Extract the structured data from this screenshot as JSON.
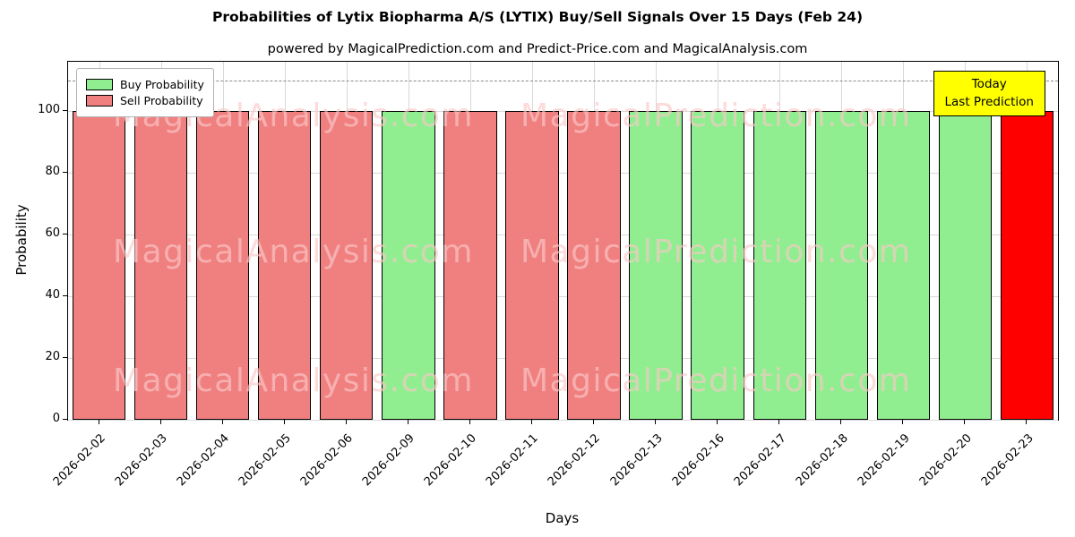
{
  "title": "Probabilities of Lytix Biopharma A/S (LYTIX) Buy/Sell Signals Over 15 Days (Feb 24)",
  "subtitle": "powered by MagicalPrediction.com and Predict-Price.com and MagicalAnalysis.com",
  "legend": {
    "buy_label": "Buy Probability",
    "sell_label": "Sell Probability"
  },
  "annotation": {
    "line1": "Today",
    "line2": "Last Prediction"
  },
  "axes": {
    "x_label": "Days",
    "y_label": "Probability",
    "dashed_line_y": 110
  },
  "colors": {
    "buy": "#90EE90",
    "sell": "#F08080",
    "today": "#FF0000",
    "annotation_bg": "#FFFF00"
  },
  "watermarks": [
    "MagicalAnalysis.com",
    "MagicalPrediction.com"
  ],
  "chart_data": {
    "type": "bar",
    "title": "Probabilities of Lytix Biopharma A/S (LYTIX) Buy/Sell Signals Over 15 Days (Feb 24)",
    "xlabel": "Days",
    "ylabel": "Probability",
    "categories": [
      "2026-02-02",
      "2026-02-03",
      "2026-02-04",
      "2026-02-05",
      "2026-02-06",
      "2026-02-09",
      "2026-02-10",
      "2026-02-11",
      "2026-02-12",
      "2026-02-13",
      "2026-02-16",
      "2026-02-17",
      "2026-02-18",
      "2026-02-19",
      "2026-02-20",
      "2026-02-23"
    ],
    "values": [
      100,
      100,
      100,
      100,
      100,
      100,
      100,
      100,
      100,
      100,
      100,
      100,
      100,
      100,
      100,
      100
    ],
    "bar_signals": [
      "sell",
      "sell",
      "sell",
      "sell",
      "sell",
      "buy",
      "sell",
      "sell",
      "sell",
      "buy",
      "buy",
      "buy",
      "buy",
      "buy",
      "buy",
      "today"
    ],
    "series": [
      {
        "name": "Buy Probability",
        "values": [
          0,
          0,
          0,
          0,
          0,
          100,
          0,
          0,
          0,
          100,
          100,
          100,
          100,
          100,
          100,
          0
        ]
      },
      {
        "name": "Sell Probability",
        "values": [
          100,
          100,
          100,
          100,
          100,
          0,
          100,
          100,
          100,
          0,
          0,
          0,
          0,
          0,
          0,
          0
        ]
      },
      {
        "name": "Today Last Prediction",
        "values": [
          0,
          0,
          0,
          0,
          0,
          0,
          0,
          0,
          0,
          0,
          0,
          0,
          0,
          0,
          0,
          100
        ]
      }
    ],
    "yticks": [
      0,
      20,
      40,
      60,
      80,
      100
    ],
    "ylim": [
      0,
      116
    ],
    "grid": true,
    "legend_position": "upper left"
  }
}
